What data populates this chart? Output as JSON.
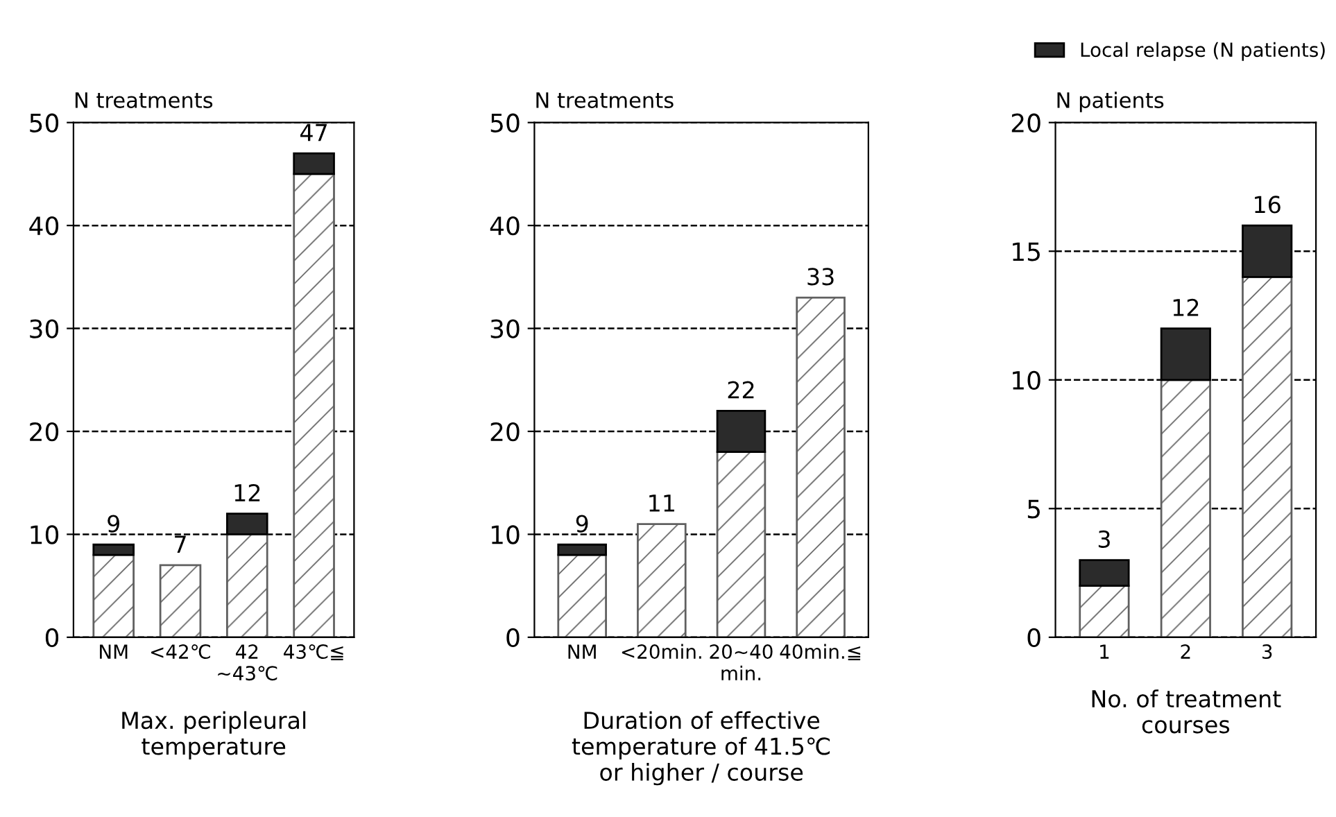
{
  "chart_data": [
    {
      "type": "bar",
      "stacked": true,
      "ylabel": "N treatments",
      "xlabel": "Max. peripleural\ntemperature",
      "categories": [
        "NM",
        "<42℃",
        "42\n~43℃",
        "43℃≦"
      ],
      "ylim": [
        0,
        50
      ],
      "yticks": [
        0,
        10,
        20,
        30,
        40,
        50
      ],
      "grid": "y",
      "totals": [
        "9",
        "7",
        "12",
        "47"
      ],
      "series": [
        {
          "color": "#606060",
          "values": [
            8,
            7,
            10,
            45
          ]
        },
        {
          "color": "#2b2b2b",
          "values": [
            1,
            0,
            2,
            2
          ]
        }
      ]
    },
    {
      "type": "bar",
      "stacked": true,
      "ylabel": "N treatments",
      "xlabel": "Duration of effective\ntemperature of 41.5℃\nor higher / course",
      "categories": [
        "NM",
        "<20min.",
        "20~40\nmin.",
        "40min.≦"
      ],
      "ylim": [
        0,
        50
      ],
      "yticks": [
        0,
        10,
        20,
        30,
        40,
        50
      ],
      "grid": "y",
      "totals": [
        "9",
        "11",
        "22",
        "33"
      ],
      "series": [
        {
          "color": "#606060",
          "values": [
            8,
            11,
            18,
            33
          ]
        },
        {
          "color": "#2b2b2b",
          "values": [
            1,
            0,
            4,
            0
          ]
        }
      ]
    },
    {
      "type": "bar",
      "stacked": true,
      "ylabel": "N patients",
      "xlabel": "No. of treatment\ncourses",
      "categories": [
        "1",
        "2",
        "3"
      ],
      "ylim": [
        0,
        20
      ],
      "yticks": [
        0,
        5,
        10,
        15,
        20
      ],
      "grid": "y",
      "totals": [
        "3",
        "12",
        "16"
      ],
      "legend": "top right",
      "series": [
        {
          "color": "#606060",
          "values": [
            2,
            10,
            14
          ]
        },
        {
          "name": "Local relapse (N patients)",
          "color": "#2b2b2b",
          "values": [
            1,
            2,
            2
          ]
        }
      ]
    }
  ]
}
